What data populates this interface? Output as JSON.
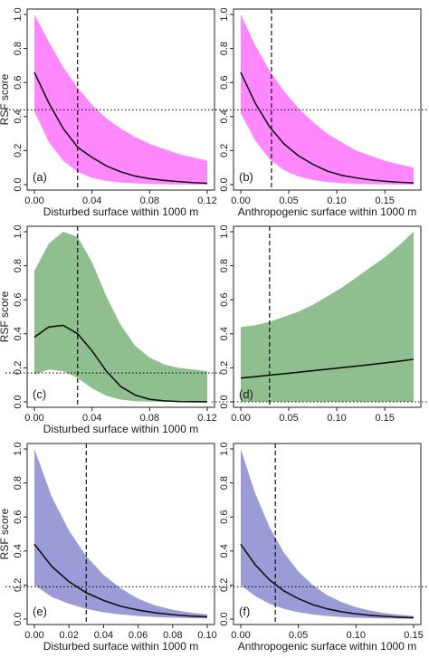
{
  "colors": {
    "pink": "#ff88ff",
    "green": "#8fbf8f",
    "blue": "#9b9bd7",
    "line": "#111111"
  },
  "chart_data": [
    {
      "id": "a",
      "type": "line",
      "tag": "(a)",
      "fill_color": "#ff88ff",
      "xlabel": "Disturbed surface within 1000 m",
      "ylabel": "RSF score",
      "xlim": [
        0,
        0.12
      ],
      "ylim": [
        0,
        1.0
      ],
      "xticks": [
        0.0,
        0.04,
        0.08,
        0.12
      ],
      "xtick_labels": [
        "0.00",
        "0.04",
        "0.08",
        "0.12"
      ],
      "yticks": [
        0,
        0.2,
        0.4,
        0.6,
        0.8,
        1.0
      ],
      "ytick_labels": [
        "0.0",
        "0.2",
        "0.4",
        "0.6",
        "0.8",
        "1.0"
      ],
      "x": [
        0,
        0.01,
        0.02,
        0.03,
        0.04,
        0.05,
        0.06,
        0.07,
        0.08,
        0.09,
        0.1,
        0.11,
        0.12
      ],
      "fit": [
        0.66,
        0.48,
        0.33,
        0.22,
        0.16,
        0.11,
        0.075,
        0.05,
        0.035,
        0.025,
        0.018,
        0.012,
        0.008
      ],
      "upper": [
        1.0,
        0.84,
        0.69,
        0.57,
        0.47,
        0.39,
        0.33,
        0.28,
        0.24,
        0.21,
        0.18,
        0.16,
        0.14
      ],
      "lower": [
        0.43,
        0.25,
        0.14,
        0.075,
        0.04,
        0.022,
        0.012,
        0.007,
        0.004,
        0.002,
        0.001,
        0.0005,
        0.0003
      ],
      "vline_x": 0.03,
      "hline_y": 0.44
    },
    {
      "id": "b",
      "type": "line",
      "tag": "(b)",
      "fill_color": "#ff88ff",
      "xlabel": "Anthropogenic surface within 1000 m",
      "ylabel": "",
      "xlim": [
        0,
        0.18
      ],
      "ylim": [
        0,
        1.0
      ],
      "xticks": [
        0.0,
        0.05,
        0.1,
        0.15
      ],
      "xtick_labels": [
        "0.00",
        "0.05",
        "0.10",
        "0.15"
      ],
      "yticks": [
        0,
        0.2,
        0.4,
        0.6,
        0.8,
        1.0
      ],
      "ytick_labels": [
        "0.0",
        "0.2",
        "0.4",
        "0.6",
        "0.8",
        "1.0"
      ],
      "x": [
        0,
        0.015,
        0.03,
        0.045,
        0.06,
        0.075,
        0.09,
        0.105,
        0.12,
        0.135,
        0.15,
        0.165,
        0.18
      ],
      "fit": [
        0.66,
        0.48,
        0.34,
        0.24,
        0.17,
        0.12,
        0.08,
        0.055,
        0.04,
        0.028,
        0.02,
        0.014,
        0.01
      ],
      "upper": [
        1.0,
        0.82,
        0.67,
        0.55,
        0.45,
        0.37,
        0.3,
        0.25,
        0.2,
        0.17,
        0.14,
        0.12,
        0.1
      ],
      "lower": [
        0.42,
        0.26,
        0.15,
        0.085,
        0.048,
        0.027,
        0.015,
        0.008,
        0.005,
        0.003,
        0.002,
        0.001,
        0.0005
      ],
      "vline_x": 0.032,
      "hline_y": 0.44
    },
    {
      "id": "c",
      "type": "line",
      "tag": "(c)",
      "fill_color": "#8fbf8f",
      "xlabel": "Disturbed surface within 1000 m",
      "ylabel": "RSF score",
      "xlim": [
        0,
        0.12
      ],
      "ylim": [
        0,
        1.0
      ],
      "xticks": [
        0.0,
        0.04,
        0.08,
        0.12
      ],
      "xtick_labels": [
        "0.00",
        "0.04",
        "0.08",
        "0.12"
      ],
      "yticks": [
        0,
        0.2,
        0.4,
        0.6,
        0.8,
        1.0
      ],
      "ytick_labels": [
        "0.0",
        "0.2",
        "0.4",
        "0.6",
        "0.8",
        "1.0"
      ],
      "x": [
        0,
        0.01,
        0.02,
        0.03,
        0.04,
        0.05,
        0.06,
        0.07,
        0.08,
        0.09,
        0.1,
        0.11,
        0.12
      ],
      "fit": [
        0.38,
        0.44,
        0.45,
        0.4,
        0.3,
        0.18,
        0.09,
        0.04,
        0.015,
        0.006,
        0.002,
        0.001,
        0.0005
      ],
      "upper": [
        0.77,
        0.93,
        1.0,
        0.97,
        0.82,
        0.62,
        0.45,
        0.33,
        0.26,
        0.22,
        0.2,
        0.19,
        0.18
      ],
      "lower": [
        0.16,
        0.19,
        0.18,
        0.14,
        0.08,
        0.035,
        0.013,
        0.004,
        0.001,
        0.0004,
        0.0001,
        0.0,
        0.0
      ],
      "vline_x": 0.03,
      "hline_y": 0.17
    },
    {
      "id": "d",
      "type": "line",
      "tag": "(d)",
      "fill_color": "#8fbf8f",
      "xlabel": "",
      "ylabel": "",
      "xlim": [
        0,
        0.18
      ],
      "ylim": [
        0,
        1.0
      ],
      "xticks": [
        0.0,
        0.05,
        0.1,
        0.15
      ],
      "xtick_labels": [
        "0.00",
        "0.05",
        "0.10",
        "0.15"
      ],
      "yticks": [
        0,
        0.2,
        0.4,
        0.6,
        0.8,
        1.0
      ],
      "ytick_labels": [
        "0.0",
        "0.2",
        "0.4",
        "0.6",
        "0.8",
        "1.0"
      ],
      "x": [
        0,
        0.015,
        0.03,
        0.045,
        0.06,
        0.075,
        0.09,
        0.105,
        0.12,
        0.135,
        0.15,
        0.165,
        0.18
      ],
      "fit": [
        0.14,
        0.148,
        0.157,
        0.165,
        0.174,
        0.183,
        0.192,
        0.201,
        0.21,
        0.219,
        0.229,
        0.239,
        0.25
      ],
      "upper": [
        0.44,
        0.45,
        0.47,
        0.5,
        0.53,
        0.57,
        0.62,
        0.67,
        0.73,
        0.79,
        0.85,
        0.92,
        1.0
      ],
      "lower": [
        0.0,
        0.0,
        0.0,
        0.0,
        0.0,
        0.0,
        0.0,
        0.0,
        0.0,
        0.0,
        0.0,
        0.0,
        0.0
      ],
      "vline_x": 0.03,
      "hline_y": 0.0
    },
    {
      "id": "e",
      "type": "line",
      "tag": "(e)",
      "fill_color": "#9b9bd7",
      "xlabel": "Disturbed surface within 1000 m",
      "ylabel": "RSF score",
      "xlim": [
        0,
        0.1
      ],
      "ylim": [
        0,
        1.0
      ],
      "xticks": [
        0.0,
        0.02,
        0.04,
        0.06,
        0.08,
        0.1
      ],
      "xtick_labels": [
        "0.00",
        "0.02",
        "0.04",
        "0.06",
        "0.08",
        "0.10"
      ],
      "yticks": [
        0,
        0.2,
        0.4,
        0.6,
        0.8,
        1.0
      ],
      "ytick_labels": [
        "0.0",
        "0.2",
        "0.4",
        "0.6",
        "0.8",
        "1.0"
      ],
      "x": [
        0,
        0.01,
        0.02,
        0.03,
        0.04,
        0.05,
        0.06,
        0.07,
        0.08,
        0.09,
        0.1
      ],
      "fit": [
        0.44,
        0.31,
        0.22,
        0.155,
        0.11,
        0.075,
        0.053,
        0.037,
        0.026,
        0.018,
        0.013
      ],
      "upper": [
        1.0,
        0.72,
        0.52,
        0.37,
        0.26,
        0.18,
        0.12,
        0.08,
        0.055,
        0.038,
        0.028
      ],
      "lower": [
        0.2,
        0.13,
        0.09,
        0.06,
        0.04,
        0.027,
        0.018,
        0.012,
        0.008,
        0.005,
        0.004
      ],
      "vline_x": 0.03,
      "hline_y": 0.19
    },
    {
      "id": "f",
      "type": "line",
      "tag": "(f)",
      "fill_color": "#9b9bd7",
      "xlabel": "Anthropogenic surface within 1000 m",
      "ylabel": "",
      "xlim": [
        0,
        0.15
      ],
      "ylim": [
        0,
        1.0
      ],
      "xticks": [
        0.0,
        0.05,
        0.1,
        0.15
      ],
      "xtick_labels": [
        "0.00",
        "0.05",
        "0.10",
        "0.15"
      ],
      "yticks": [
        0,
        0.2,
        0.4,
        0.6,
        0.8,
        1.0
      ],
      "ytick_labels": [
        "0.0",
        "0.2",
        "0.4",
        "0.6",
        "0.8",
        "1.0"
      ],
      "x": [
        0,
        0.0125,
        0.025,
        0.0375,
        0.05,
        0.0625,
        0.075,
        0.0875,
        0.1,
        0.1125,
        0.125,
        0.1375,
        0.15
      ],
      "fit": [
        0.44,
        0.32,
        0.23,
        0.165,
        0.12,
        0.085,
        0.06,
        0.043,
        0.031,
        0.022,
        0.016,
        0.011,
        0.008
      ],
      "upper": [
        1.0,
        0.74,
        0.54,
        0.39,
        0.28,
        0.2,
        0.14,
        0.1,
        0.07,
        0.05,
        0.035,
        0.025,
        0.018
      ],
      "lower": [
        0.2,
        0.135,
        0.09,
        0.06,
        0.04,
        0.027,
        0.018,
        0.012,
        0.008,
        0.005,
        0.0035,
        0.0025,
        0.0015
      ],
      "vline_x": 0.03,
      "hline_y": 0.19
    }
  ]
}
